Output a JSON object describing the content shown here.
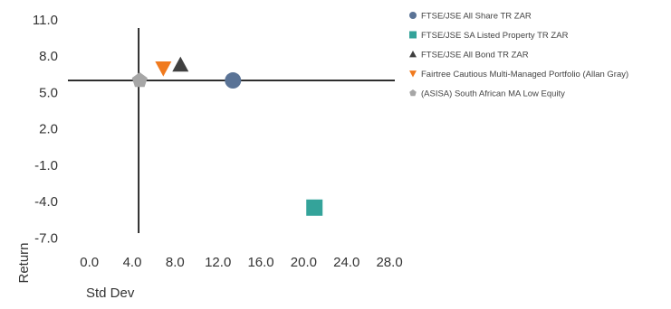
{
  "chart_data": {
    "type": "scatter",
    "xlabel": "Std Dev",
    "ylabel": "Return",
    "xlim": [
      -2,
      28.5
    ],
    "ylim": [
      -7.5,
      11.3
    ],
    "x_ticks": [
      0,
      4,
      8,
      12,
      16,
      20,
      24,
      28
    ],
    "x_tick_labels": [
      "0.0",
      "4.0",
      "8.0",
      "12.0",
      "16.0",
      "20.0",
      "24.0",
      "28.0"
    ],
    "y_ticks": [
      11,
      8,
      5,
      2,
      -1,
      -4,
      -7
    ],
    "y_tick_labels": [
      "11.0",
      "8.0",
      "5.0",
      "2.0",
      "-1.0",
      "-4.0",
      "-7.0"
    ],
    "reference_lines": {
      "x": 4.6,
      "y": 6.0
    },
    "legend_position": "right",
    "grid": false,
    "series": [
      {
        "name": "FTSE/JSE All Share TR ZAR",
        "marker": "circle",
        "color": "#5A7396",
        "x": 13.4,
        "y": 6.0
      },
      {
        "name": "FTSE/JSE SA Listed Property TR ZAR",
        "marker": "square",
        "color": "#34A39A",
        "x": 21.0,
        "y": -4.5
      },
      {
        "name": "FTSE/JSE All Bond TR ZAR",
        "marker": "triangle-up",
        "color": "#404040",
        "x": 8.5,
        "y": 7.3
      },
      {
        "name": "Fairtree Cautious Multi-Managed Portfolio (Allan Gray)",
        "marker": "triangle-down",
        "color": "#F07A1E",
        "x": 6.9,
        "y": 7.0
      },
      {
        "name": "(ASISA) South African MA Low Equity",
        "marker": "pentagon",
        "color": "#A6A6A6",
        "x": 4.7,
        "y": 6.0
      }
    ]
  }
}
